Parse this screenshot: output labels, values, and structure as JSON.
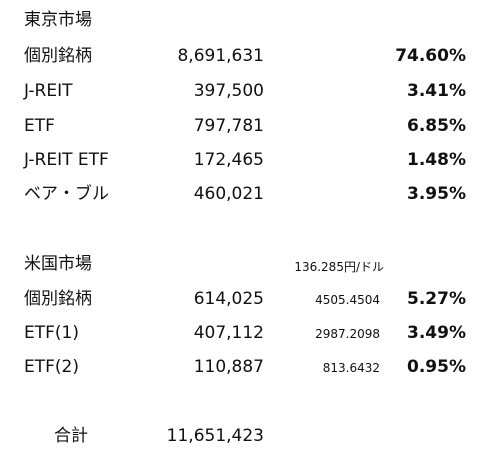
{
  "tokyo": {
    "title": "東京市場",
    "rows": [
      {
        "label": "個別銘柄",
        "amount": "8,691,631",
        "pct": "74.60%"
      },
      {
        "label": "J-REIT",
        "amount": "397,500",
        "pct": "3.41%"
      },
      {
        "label": "ETF",
        "amount": "797,781",
        "pct": "6.85%"
      },
      {
        "label": "J-REIT ETF",
        "amount": "172,465",
        "pct": "1.48%"
      },
      {
        "label": "ベア・ブル",
        "amount": "460,021",
        "pct": "3.95%"
      }
    ]
  },
  "us": {
    "title": "米国市場",
    "exchange_rate": "136.285円/ドル",
    "rows": [
      {
        "label": "個別銘柄",
        "amount": "614,025",
        "usd": "4505.4504",
        "pct": "5.27%"
      },
      {
        "label": "ETF(1)",
        "amount": "407,112",
        "usd": "2987.2098",
        "pct": "3.49%"
      },
      {
        "label": "ETF(2)",
        "amount": "110,887",
        "usd": "813.6432",
        "pct": "0.95%"
      }
    ]
  },
  "total": {
    "label": "合計",
    "amount": "11,651,423"
  }
}
